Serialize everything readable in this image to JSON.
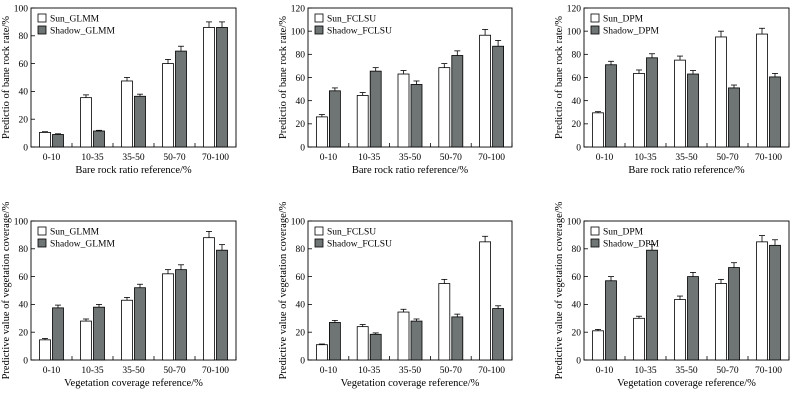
{
  "colors": {
    "sun_fill": "#ffffff",
    "shadow_fill": "#6e7574",
    "stroke": "#000000"
  },
  "chart_data": [
    {
      "type": "bar",
      "categories": [
        "0-10",
        "10-35",
        "35-50",
        "50-70",
        "70-100"
      ],
      "xlabel": "Bare rock ratio reference/%",
      "ylabel": "Predictio of bane rock rate/%",
      "ylim": [
        0,
        100
      ],
      "yticks": [
        0,
        20,
        40,
        60,
        80,
        100
      ],
      "legend_position": "top-left",
      "series": [
        {
          "name": "Sun_GLMM",
          "values": [
            10.5,
            35.5,
            47.5,
            60,
            86
          ],
          "errors": [
            0.5,
            2,
            2.5,
            3,
            4
          ]
        },
        {
          "name": "Shadow_GLMM",
          "values": [
            9,
            11.5,
            36.5,
            69,
            86
          ],
          "errors": [
            0.5,
            0.5,
            1.5,
            3.5,
            4
          ]
        }
      ]
    },
    {
      "type": "bar",
      "categories": [
        "0-10",
        "10-35",
        "35-50",
        "50-70",
        "70-100"
      ],
      "xlabel": "Bare rock ratio reference/%",
      "ylabel": "Predictio of bane rock rate/%",
      "ylim": [
        0,
        120
      ],
      "yticks": [
        0,
        20,
        40,
        60,
        80,
        100,
        120
      ],
      "legend_position": "top-left",
      "series": [
        {
          "name": "Sun_FCLSU",
          "values": [
            26,
            44.5,
            63,
            68.5,
            96.5
          ],
          "errors": [
            2,
            2.5,
            3,
            3.5,
            5
          ]
        },
        {
          "name": "Shadow_FCLSU",
          "values": [
            48.5,
            65.5,
            54,
            79,
            87
          ],
          "errors": [
            2.5,
            3,
            3,
            4,
            5
          ]
        }
      ]
    },
    {
      "type": "bar",
      "categories": [
        "0-10",
        "10-35",
        "35-50",
        "50-70",
        "70-100"
      ],
      "xlabel": "Bare rock ratio reference/%",
      "ylabel": "Predictio of bane rock rate/%",
      "ylim": [
        0,
        120
      ],
      "yticks": [
        0,
        20,
        40,
        60,
        80,
        100,
        120
      ],
      "legend_position": "top-left",
      "series": [
        {
          "name": "Sun_DPM",
          "values": [
            29.5,
            63.5,
            75,
            95,
            97.5
          ],
          "errors": [
            1,
            3,
            3.5,
            5,
            5
          ]
        },
        {
          "name": "Shadow_DPM",
          "values": [
            71,
            77,
            63,
            51,
            60.5
          ],
          "errors": [
            3,
            3.5,
            3,
            2.5,
            3
          ]
        }
      ]
    },
    {
      "type": "bar",
      "categories": [
        "0-10",
        "10-35",
        "35-50",
        "50-70",
        "70-100"
      ],
      "xlabel": "Vegetation coverage reference/%",
      "ylabel": "Predictive value of vegetation coverage/%",
      "ylim": [
        0,
        100
      ],
      "yticks": [
        0,
        20,
        40,
        60,
        80,
        100
      ],
      "legend_position": "top-left",
      "series": [
        {
          "name": "Sun_GLMM",
          "values": [
            14.5,
            28,
            43,
            62,
            88
          ],
          "errors": [
            1,
            1.5,
            2,
            3,
            4.5
          ]
        },
        {
          "name": "Shadow_GLMM",
          "values": [
            37.5,
            38,
            52,
            65,
            79
          ],
          "errors": [
            2,
            2,
            2.5,
            3.5,
            4
          ]
        }
      ]
    },
    {
      "type": "bar",
      "categories": [
        "0-10",
        "10-35",
        "35-50",
        "50-70",
        "70-100"
      ],
      "xlabel": "Vegetation coverage reference/%",
      "ylabel": "Predictive value of vegetation coverage/%",
      "ylim": [
        0,
        100
      ],
      "yticks": [
        0,
        20,
        40,
        60,
        80,
        100
      ],
      "legend_position": "top-left",
      "series": [
        {
          "name": "Sun_FCLSU",
          "values": [
            11,
            24,
            34.5,
            55,
            85
          ],
          "errors": [
            0.5,
            1.5,
            2,
            3,
            4
          ]
        },
        {
          "name": "Shadow_FCLSU",
          "values": [
            27,
            18.5,
            28,
            31,
            37
          ],
          "errors": [
            1.5,
            1,
            1.5,
            2,
            2
          ]
        }
      ]
    },
    {
      "type": "bar",
      "categories": [
        "0-10",
        "10-35",
        "35-50",
        "50-70",
        "70-100"
      ],
      "xlabel": "Vegetation coverage reference/%",
      "ylabel": "Predictive value of vegetation coverage/%",
      "ylim": [
        0,
        100
      ],
      "yticks": [
        0,
        20,
        40,
        60,
        80,
        100
      ],
      "legend_position": "top-left",
      "series": [
        {
          "name": "Sun_DPM",
          "values": [
            21,
            30,
            43.5,
            55,
            85
          ],
          "errors": [
            1,
            1.5,
            2.5,
            3,
            4.5
          ]
        },
        {
          "name": "Shadow_DPM",
          "values": [
            57,
            79,
            60,
            66.5,
            82.5
          ],
          "errors": [
            3,
            4,
            3,
            3.5,
            4
          ]
        }
      ]
    }
  ]
}
